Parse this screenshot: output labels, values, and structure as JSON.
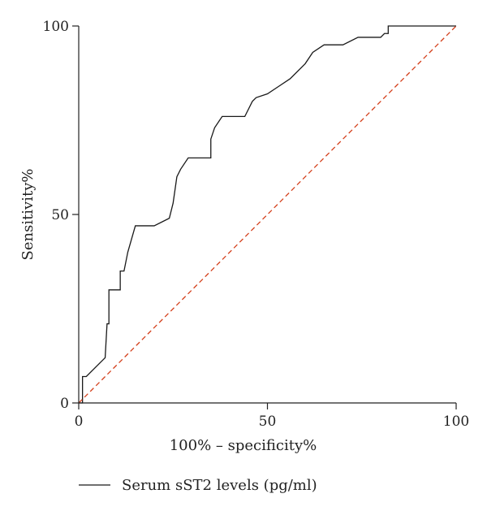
{
  "chart_data": {
    "type": "line",
    "title": "",
    "xlabel": "100% – specificity%",
    "ylabel": "Sensitivity%",
    "xlim": [
      0,
      100
    ],
    "ylim": [
      0,
      100
    ],
    "x_ticks": [
      "0",
      "50",
      "100"
    ],
    "y_ticks": [
      "0",
      "50",
      "100"
    ],
    "grid": false,
    "legend_position": "bottom-left",
    "series": [
      {
        "name": "Serum sST2 levels (pg/ml)",
        "color": "#1a1a1a",
        "style": "step",
        "x": [
          0,
          1,
          1,
          2,
          7,
          7.5,
          8,
          8,
          11,
          11,
          12,
          13,
          15,
          20,
          24,
          25,
          26,
          27,
          29,
          30,
          35,
          35,
          36,
          38,
          39,
          44,
          46,
          47,
          50,
          53,
          56,
          60,
          62,
          65,
          68,
          70,
          74,
          75,
          76,
          80,
          81,
          82,
          82,
          100
        ],
        "y": [
          0,
          0,
          7,
          7,
          12,
          21,
          21,
          30,
          30,
          35,
          35,
          40,
          47,
          47,
          49,
          53,
          60,
          62,
          65,
          65,
          65,
          70,
          73,
          76,
          76,
          76,
          80,
          81,
          82,
          84,
          86,
          90,
          93,
          95,
          95,
          95,
          97,
          97,
          97,
          97,
          98,
          98,
          100,
          100
        ]
      },
      {
        "name": "",
        "color": "#d4401c",
        "style": "dashed",
        "x": [
          0,
          100
        ],
        "y": [
          0,
          100
        ]
      }
    ]
  }
}
